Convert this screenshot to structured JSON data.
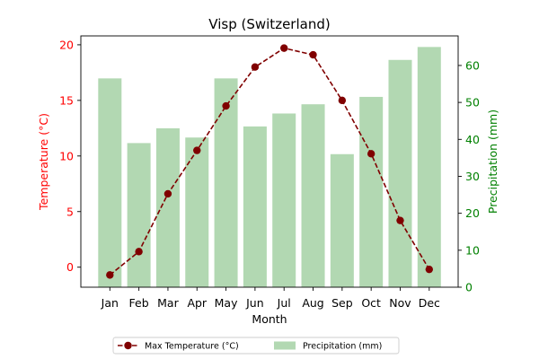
{
  "chart_data": {
    "type": "bar+line",
    "title": "Visp (Switzerland)",
    "xlabel": "Month",
    "categories": [
      "Jan",
      "Feb",
      "Mar",
      "Apr",
      "May",
      "Jun",
      "Jul",
      "Aug",
      "Sep",
      "Oct",
      "Nov",
      "Dec"
    ],
    "left_axis": {
      "label": "Temperature (°C)",
      "color": "#ff0000",
      "ylim": [
        -1.8,
        20.8
      ],
      "ticks": [
        0,
        5,
        10,
        15,
        20
      ],
      "tick_labels": [
        "0",
        "5",
        "10",
        "15",
        "20"
      ]
    },
    "right_axis": {
      "label": "Precipitation (mm)",
      "color": "#008000",
      "ylim": [
        0,
        68
      ],
      "ticks": [
        0,
        10,
        20,
        30,
        40,
        50,
        60
      ],
      "tick_labels": [
        "0",
        "10",
        "20",
        "30",
        "40",
        "50",
        "60"
      ]
    },
    "series": [
      {
        "name": "Max Temperature (°C)",
        "kind": "line",
        "axis": "left",
        "color": "#800000",
        "linestyle": "dashed",
        "marker": "circle",
        "values": [
          -0.7,
          1.4,
          6.6,
          10.5,
          14.5,
          18.0,
          19.7,
          19.1,
          15.0,
          10.2,
          4.2,
          -0.2
        ]
      },
      {
        "name": "Precipitation (mm)",
        "kind": "bar",
        "axis": "right",
        "color": "#b2d8b2",
        "values": [
          56.5,
          39,
          43,
          40.5,
          56.5,
          43.5,
          47,
          49.5,
          36,
          51.5,
          61.5,
          65
        ]
      }
    ],
    "legend": {
      "placement": "bottom-center"
    }
  }
}
